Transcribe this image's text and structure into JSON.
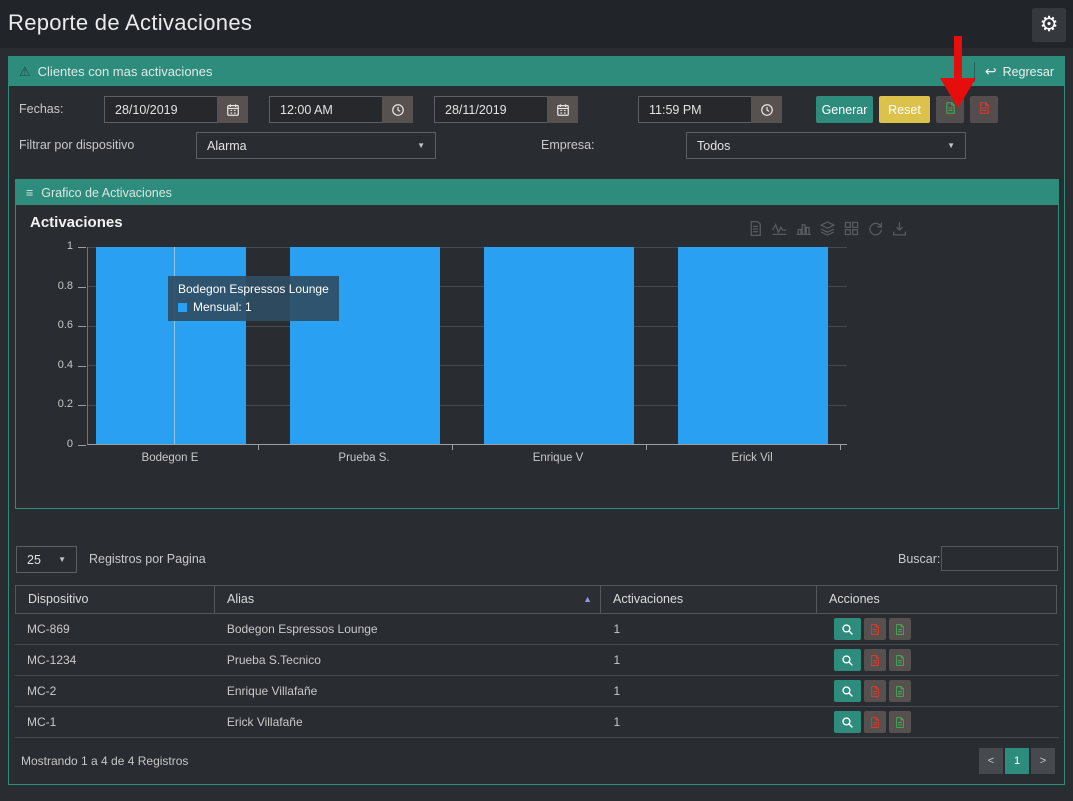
{
  "colors": {
    "accent": "#2e8c7d",
    "reset": "#dcc14a",
    "bar": "#29a0f2",
    "pdf": "#e2392b",
    "excel": "#3fae53",
    "arrow": "#e60d0d"
  },
  "header": {
    "title": "Reporte de Activaciones"
  },
  "panel": {
    "title": "Clientes con mas activaciones",
    "back_label": "Regresar"
  },
  "filters": {
    "fechas_label": "Fechas:",
    "start_date": "28/10/2019",
    "start_time": "12:00 AM",
    "end_date": "28/11/2019",
    "end_time": "11:59 PM",
    "generar_label": "Generar",
    "reset_label": "Reset",
    "device_label": "Filtrar por dispositivo",
    "device_value": "Alarma",
    "empresa_label": "Empresa:",
    "empresa_value": "Todos"
  },
  "chart_panel_title": "Grafico de Activaciones",
  "chart_data": {
    "type": "bar",
    "title": "Activaciones",
    "categories": [
      "Bodegon E",
      "Prueba S.",
      "Enrique V",
      "Erick Vil"
    ],
    "series": [
      {
        "name": "Mensual",
        "values": [
          1,
          1,
          1,
          1
        ]
      }
    ],
    "ylim": [
      0,
      1
    ],
    "yticks": [
      0,
      0.2,
      0.4,
      0.6,
      0.8,
      1
    ],
    "grid": true,
    "legend_position": "none",
    "bar_color": "#29a0f2",
    "tooltip": {
      "title": "Bodegon Espressos Lounge",
      "series": "Mensual",
      "value": 1
    }
  },
  "table": {
    "page_size": "25",
    "page_size_label": "Registros por Pagina",
    "search_label": "Buscar:",
    "search_value": "",
    "columns": [
      "Dispositivo",
      "Alias",
      "Activaciones",
      "Acciones"
    ],
    "sort_column": "Alias",
    "sort_dir": "asc",
    "rows": [
      {
        "dispositivo": "MC-869",
        "alias": "Bodegon Espressos Lounge",
        "activaciones": "1"
      },
      {
        "dispositivo": "MC-1234",
        "alias": "Prueba S.Tecnico",
        "activaciones": "1"
      },
      {
        "dispositivo": "MC-2",
        "alias": "Enrique Villafañe",
        "activaciones": "1"
      },
      {
        "dispositivo": "MC-1",
        "alias": "Erick Villafañe",
        "activaciones": "1"
      }
    ],
    "footer_text": "Mostrando 1 a 4 de 4 Registros",
    "pagination": {
      "prev": "<",
      "current": "1",
      "next": ">"
    }
  }
}
